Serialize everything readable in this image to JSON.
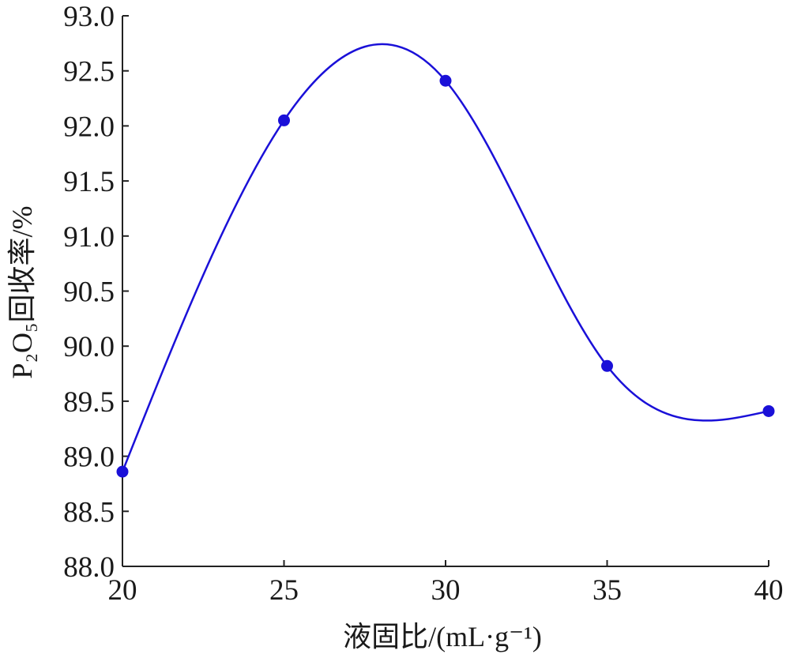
{
  "chart_data": {
    "type": "line",
    "x_label": "液固比/(mL·g⁻¹)",
    "y_label": "P₂O₅回收率/%",
    "x": [
      20,
      25,
      30,
      35,
      40
    ],
    "series": [
      {
        "color": "#1a10d8",
        "values": [
          88.86,
          92.05,
          92.41,
          89.82,
          89.41
        ]
      }
    ],
    "xlim": [
      20,
      40
    ],
    "xticks": [
      20,
      25,
      30,
      35,
      40
    ],
    "ylim": [
      88,
      93
    ],
    "yticks": [
      {
        "value": 88,
        "label": "88.0"
      },
      {
        "value": 88.5,
        "label": "88.5"
      },
      {
        "value": 89,
        "label": "89.0"
      },
      {
        "value": 89.5,
        "label": "89.5"
      },
      {
        "value": 90,
        "label": "90.0"
      },
      {
        "value": 90.5,
        "label": "90.5"
      },
      {
        "value": 91,
        "label": "91.0"
      },
      {
        "value": 91.5,
        "label": "91.5"
      },
      {
        "value": 92,
        "label": "92.0"
      },
      {
        "value": 92.5,
        "label": "92.5"
      },
      {
        "value": 93,
        "label": "93.0"
      }
    ],
    "grid": false
  }
}
